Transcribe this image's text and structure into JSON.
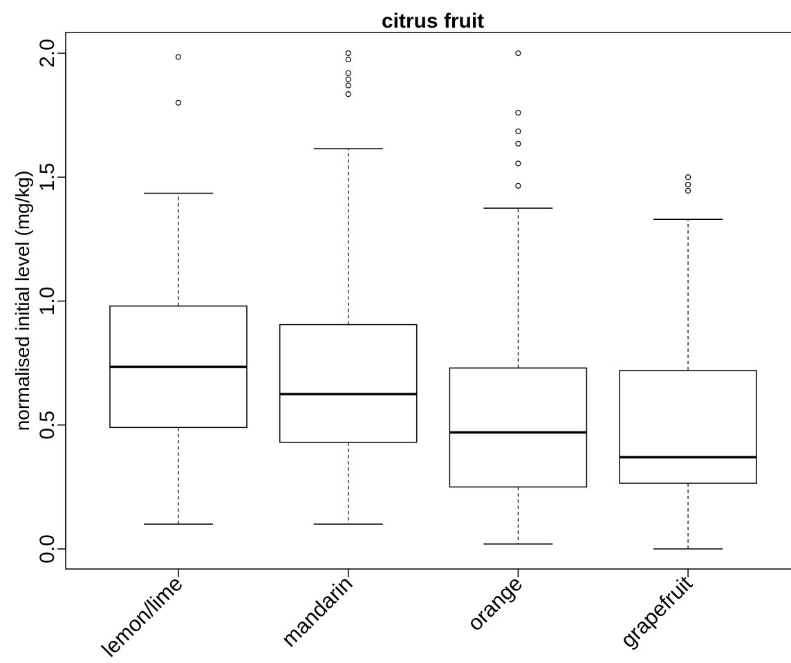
{
  "chart_data": {
    "type": "boxplot",
    "title": "citrus fruit",
    "ylabel": "normalised initial level (mg/kg)",
    "xlabel": "",
    "ylim": [
      -0.08,
      2.08
    ],
    "yticks": [
      0.0,
      0.5,
      1.0,
      1.5,
      2.0
    ],
    "ytick_labels": [
      "0.0",
      "0.5",
      "1.0",
      "1.5",
      "2.0"
    ],
    "categories": [
      "lemon/lime",
      "mandarin",
      "orange",
      "grapefruit"
    ],
    "series": [
      {
        "category": "lemon/lime",
        "whisker_low": 0.1,
        "q1": 0.49,
        "median": 0.735,
        "q3": 0.98,
        "whisker_high": 1.435,
        "outliers": [
          1.8,
          1.985
        ]
      },
      {
        "category": "mandarin",
        "whisker_low": 0.1,
        "q1": 0.43,
        "median": 0.625,
        "q3": 0.905,
        "whisker_high": 1.615,
        "outliers": [
          1.835,
          1.87,
          1.895,
          1.92,
          1.975,
          2.0
        ]
      },
      {
        "category": "orange",
        "whisker_low": 0.02,
        "q1": 0.25,
        "median": 0.47,
        "q3": 0.73,
        "whisker_high": 1.375,
        "outliers": [
          1.465,
          1.555,
          1.635,
          1.685,
          1.76,
          2.0
        ]
      },
      {
        "category": "grapefruit",
        "whisker_low": 0.0,
        "q1": 0.265,
        "median": 0.37,
        "q3": 0.72,
        "whisker_high": 1.33,
        "outliers": [
          1.445,
          1.47,
          1.5
        ]
      }
    ],
    "grid": false,
    "legend": "none",
    "colors": {
      "box_fill": "#ffffff",
      "stroke": "#000000"
    }
  }
}
